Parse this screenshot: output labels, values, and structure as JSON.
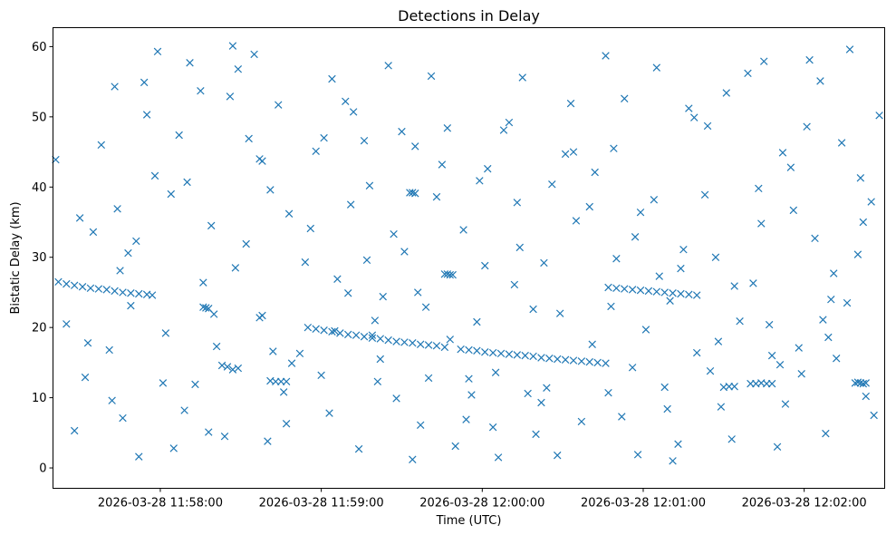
{
  "chart_data": {
    "type": "scatter",
    "title": "Detections in Delay",
    "xlabel": "Time (UTC)",
    "ylabel": "Bistatic Delay (km)",
    "marker": "x",
    "color": "#1f77b4",
    "xlim": [
      -20,
      290
    ],
    "ylim": [
      -2.9,
      62.7
    ],
    "x_unit": "seconds after 2026-03-28 11:57:40",
    "xticks": [
      {
        "value": 20,
        "label": "2026-03-28 11:58:00"
      },
      {
        "value": 80,
        "label": "2026-03-28 11:59:00"
      },
      {
        "value": 140,
        "label": "2026-03-28 12:00:00"
      },
      {
        "value": 200,
        "label": "2026-03-28 12:01:00"
      },
      {
        "value": 260,
        "label": "2026-03-28 12:02:00"
      }
    ],
    "yticks": [
      0,
      10,
      20,
      30,
      40,
      50,
      60
    ],
    "tracks": [
      {
        "name": "track-1",
        "x": [
          -18,
          -15,
          -12,
          -9,
          -6,
          -3,
          0,
          3,
          6,
          9,
          12,
          15,
          17
        ],
        "y": [
          26.5,
          26.2,
          26.0,
          25.8,
          25.6,
          25.5,
          25.4,
          25.2,
          25.0,
          24.9,
          24.8,
          24.7,
          24.6
        ]
      },
      {
        "name": "track-2",
        "x": [
          75,
          78,
          81,
          84,
          87,
          90,
          93,
          96,
          99,
          102,
          105,
          108,
          111,
          114,
          117,
          120,
          123,
          126
        ],
        "y": [
          20.0,
          19.8,
          19.6,
          19.4,
          19.2,
          19.0,
          18.9,
          18.7,
          18.5,
          18.4,
          18.2,
          18.0,
          17.9,
          17.8,
          17.6,
          17.5,
          17.4,
          17.2
        ]
      },
      {
        "name": "track-3",
        "x": [
          132,
          135,
          138,
          141,
          144,
          147,
          150,
          153,
          156,
          159,
          162,
          165,
          168,
          171,
          174,
          177,
          180,
          183,
          186
        ],
        "y": [
          16.9,
          16.8,
          16.7,
          16.5,
          16.4,
          16.3,
          16.2,
          16.1,
          16.0,
          15.9,
          15.7,
          15.6,
          15.5,
          15.4,
          15.3,
          15.2,
          15.1,
          15.0,
          14.9
        ]
      },
      {
        "name": "track-4",
        "x": [
          187,
          190,
          193,
          196,
          199,
          202,
          205,
          208,
          211,
          214,
          217,
          220
        ],
        "y": [
          25.7,
          25.6,
          25.5,
          25.4,
          25.3,
          25.2,
          25.1,
          25.0,
          24.9,
          24.8,
          24.7,
          24.6
        ]
      },
      {
        "name": "short-1",
        "x": [
          113,
          114,
          115
        ],
        "y": [
          39.2,
          39.2,
          39.1
        ]
      },
      {
        "name": "short-2",
        "x": [
          126,
          127,
          128,
          129
        ],
        "y": [
          27.6,
          27.6,
          27.5,
          27.5
        ]
      },
      {
        "name": "short-3",
        "x": [
          57,
          58
        ],
        "y": [
          44.0,
          43.7
        ]
      },
      {
        "name": "short-4",
        "x": [
          36,
          37,
          38
        ],
        "y": [
          22.9,
          22.8,
          22.7
        ]
      },
      {
        "name": "short-5",
        "x": [
          240,
          242,
          244,
          246,
          248
        ],
        "y": [
          12.0,
          12.0,
          12.1,
          12.0,
          12.0
        ]
      },
      {
        "name": "short-6",
        "x": [
          279,
          280,
          281,
          282,
          283
        ],
        "y": [
          12.1,
          12.2,
          12.1,
          12.0,
          12.1
        ]
      },
      {
        "name": "short-7",
        "x": [
          61,
          63,
          65,
          67
        ],
        "y": [
          12.4,
          12.3,
          12.3,
          12.3
        ]
      },
      {
        "name": "short-8",
        "x": [
          230,
          232,
          234
        ],
        "y": [
          11.5,
          11.6,
          11.6
        ]
      },
      {
        "name": "short-9",
        "x": [
          45,
          47,
          49
        ],
        "y": [
          14.4,
          14.0,
          14.2
        ]
      }
    ],
    "clutter_rows": [
      [
        -19,
        43.9,
        47,
        60.1,
        101,
        12.3,
        154,
        31.4,
        208,
        11.5,
        256,
        36.7,
        3,
        54.3,
        66,
        10.8
      ],
      [
        130,
        3.1,
        186,
        58.7,
        241,
        26.3,
        22,
        19.2,
        78,
        45.1,
        117,
        6.1,
        169,
        22.0,
        224,
        48.7
      ],
      [
        272,
        15.6,
        -8,
        12.9,
        39,
        34.5,
        89,
        52.2,
        141,
        28.8,
        198,
        1.9,
        247,
        20.4,
        12,
        1.6
      ],
      [
        61,
        39.6,
        103,
        24.4,
        162,
        9.3,
        215,
        31.1,
        266,
        55.1,
        27,
        47.4,
        83,
        7.8,
        125,
        43.2
      ],
      [
        181,
        17.6,
        233,
        4.1,
        285,
        37.9,
        -15,
        20.5,
        49,
        56.8,
        97,
        29.6,
        146,
        1.5,
        204,
        38.2
      ],
      [
        259,
        13.4,
        5,
        28.1,
        58,
        21.7,
        110,
        47.9,
        157,
        10.6,
        210,
        23.8,
        268,
        4.9,
        18,
        41.6
      ],
      [
        72,
        16.3,
        121,
        55.8,
        175,
        35.2,
        229,
        8.7,
        280,
        30.4,
        33,
        11.9,
        91,
        37.5,
        138,
        20.8
      ],
      [
        193,
        52.6,
        251,
        14.7,
        -5,
        33.6,
        44,
        4.5,
        99,
        18.9,
        150,
        49.2,
        206,
        27.3,
        262,
        58.1
      ],
      [
        9,
        23.1,
        64,
        51.7,
        114,
        1.2,
        166,
        40.4,
        220,
        16.4,
        274,
        46.3,
        29,
        8.2,
        86,
        26.9
      ],
      [
        135,
        12.7,
        189,
        45.5,
        244,
        34.8,
        -12,
        5.3,
        52,
        31.9,
        105,
        57.3,
        159,
        22.6,
        213,
        3.4
      ],
      [
        267,
        21.1,
        15,
        50.3,
        69,
        14.9,
        123,
        38.6,
        177,
        6.6,
        231,
        53.4,
        283,
        10.2,
        36,
        26.4
      ],
      [
        94,
        2.7,
        148,
        48.1,
        201,
        19.7,
        255,
        42.8,
        1,
        16.8,
        55,
        58.9,
        108,
        9.9,
        163,
        29.2
      ],
      [
        217,
        51.2,
        270,
        24.0,
        24,
        39.0,
        80,
        13.2,
        133,
        33.9,
        187,
        10.7,
        239,
        56.2,
        8,
        30.6
      ],
      [
        60,
        3.8,
        116,
        25.0,
        171,
        44.7,
        225,
        13.8,
        277,
        59.6,
        41,
        17.3,
        96,
        46.6,
        144,
        5.8
      ],
      [
        199,
        36.4,
        253,
        9.1,
        -2,
        46.0,
        48,
        28.5,
        102,
        15.5,
        155,
        55.6,
        211,
        1.0,
        264,
        32.7
      ],
      [
        21,
        12.1,
        76,
        34.1,
        128,
        18.3,
        182,
        42.1,
        236,
        20.9,
        288,
        50.2,
        31,
        57.7,
        85,
        19.5
      ],
      [
        139,
        40.9,
        192,
        7.3,
        248,
        16.0,
        4,
        36.9,
        57,
        21.4,
        111,
        30.8,
        164,
        11.4,
        219,
        49.9
      ],
      [
        271,
        27.7,
        25,
        2.8,
        81,
        47.0,
        134,
        6.9,
        188,
        23.0,
        243,
        39.8,
        -10,
        35.6,
        43,
        14.6
      ],
      [
        98,
        40.2,
        152,
        26.1,
        205,
        57.0,
        258,
        17.1,
        11,
        32.3,
        67,
        6.3,
        119,
        22.9,
        173,
        51.9
      ],
      [
        227,
        30.0,
        281,
        41.3,
        35,
        53.7,
        90,
        24.9,
        142,
        42.6,
        196,
        14.3,
        250,
        3.0,
        2,
        9.6
      ],
      [
        53,
        46.9,
        107,
        33.3,
        160,
        4.8,
        214,
        28.4,
        269,
        18.6,
        19,
        59.3,
        74,
        29.3,
        127,
        48.4
      ],
      [
        180,
        37.2,
        234,
        25.9,
        286,
        7.5,
        40,
        21.9,
        92,
        50.7,
        145,
        13.6,
        197,
        32.9,
        252,
        44.9
      ],
      [
        6,
        7.1,
        62,
        16.6,
        115,
        45.8,
        168,
        1.8,
        223,
        38.9,
        276,
        23.5,
        30,
        40.7,
        84,
        55.4
      ],
      [
        136,
        10.4,
        190,
        29.8,
        245,
        57.9,
        -7,
        17.8,
        46,
        52.9,
        100,
        21.0,
        153,
        37.8,
        209,
        8.4
      ],
      [
        261,
        48.6,
        14,
        54.9,
        68,
        36.2,
        120,
        12.8,
        174,
        45.0,
        228,
        18.0,
        282,
        35.0,
        38,
        5.1
      ]
    ]
  }
}
